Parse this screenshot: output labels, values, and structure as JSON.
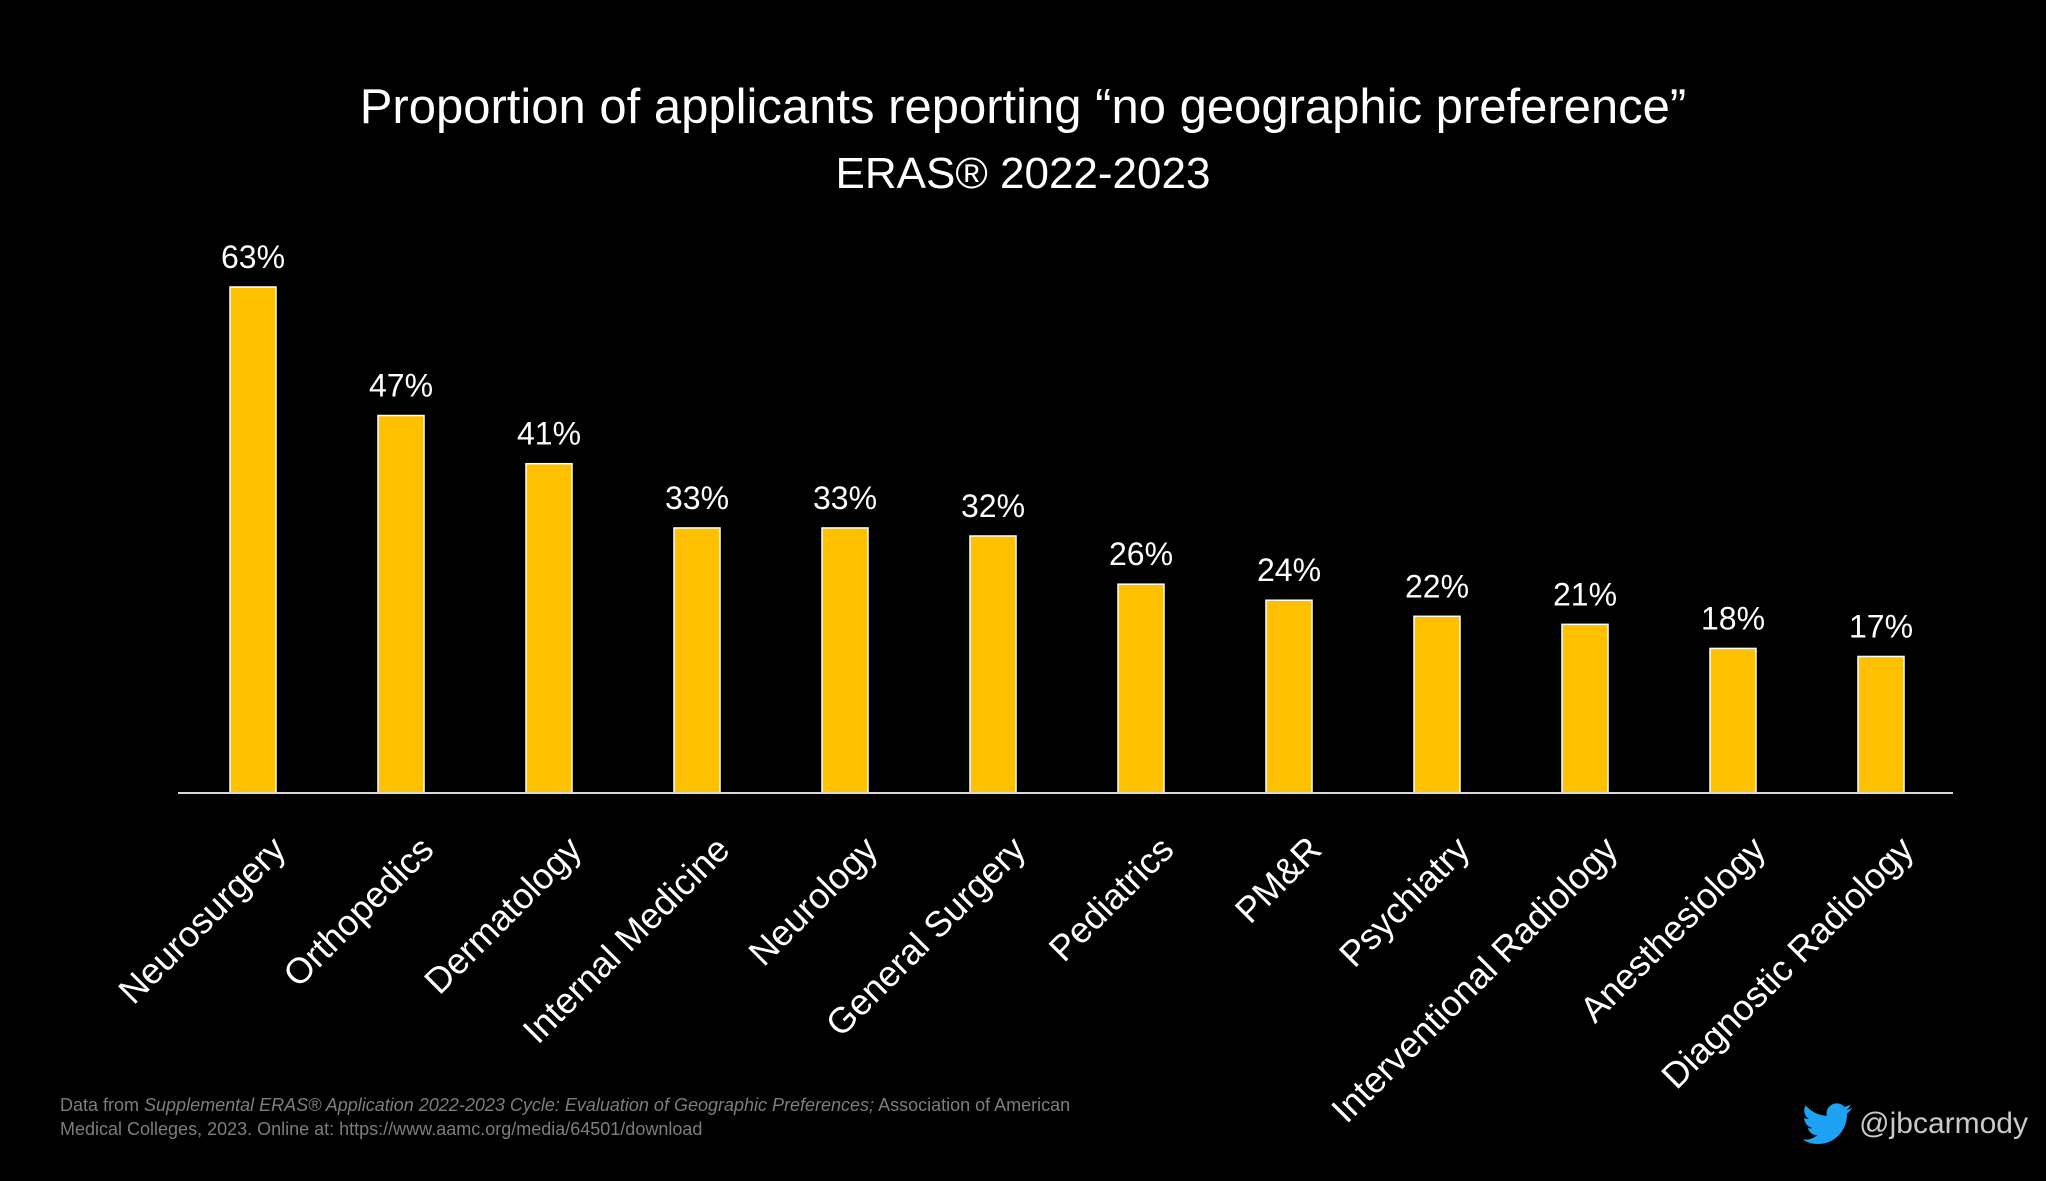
{
  "chart_data": {
    "type": "bar",
    "title": "Proportion of applicants reporting “no geographic preference”",
    "subtitle": "ERAS® 2022-2023",
    "categories": [
      "Neurosurgery",
      "Orthopedics",
      "Dermatology",
      "Internal Medicine",
      "Neurology",
      "General Surgery",
      "Pediatrics",
      "PM&R",
      "Psychiatry",
      "Interventional Radiology",
      "Anesthesiology",
      "Diagnostic Radiology"
    ],
    "values": [
      63,
      47,
      41,
      33,
      33,
      32,
      26,
      24,
      22,
      21,
      18,
      17
    ],
    "value_labels": [
      "63%",
      "47%",
      "41%",
      "33%",
      "33%",
      "32%",
      "26%",
      "24%",
      "22%",
      "21%",
      "18%",
      "17%"
    ],
    "unit": "%",
    "xlabel": "",
    "ylabel": "",
    "ylim": [
      0,
      63
    ],
    "grid": false,
    "legend": "none",
    "colors": {
      "bar": "#FFC000",
      "bar_outline": "#ffffff",
      "axis": "#d9d9d9",
      "background": "#000000",
      "text": "#ffffff"
    }
  },
  "footer": {
    "source_prefix": "Data from ",
    "source_italic": "Supplemental ERAS® Application 2022-2023 Cycle: Evaluation of Geographic Preferences;",
    "source_suffix": " Association of American Medical Colleges, 2023. Online at: https://www.aamc.org/media/64501/download",
    "handle_icon": "twitter-bird-icon",
    "handle_icon_color": "#1DA1F2",
    "handle": "@jbcarmody"
  }
}
